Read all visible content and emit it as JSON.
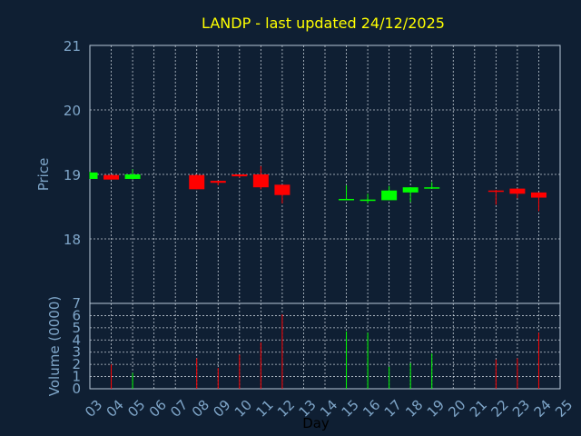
{
  "chart_data": {
    "type": "candlestick",
    "title": "LANDP - last updated 24/12/2025",
    "xlabel": "Day",
    "price_axis": {
      "label": "Price",
      "ylim": [
        17.0,
        21.0
      ],
      "ticks": [
        "18",
        "19",
        "20",
        "21"
      ]
    },
    "volume_axis": {
      "label": "Volume (0000)",
      "ylim": [
        0,
        7
      ],
      "ticks": [
        "0",
        "1",
        "2",
        "3",
        "4",
        "5",
        "6",
        "7"
      ]
    },
    "x_ticks": [
      "03",
      "04",
      "05",
      "06",
      "07",
      "08",
      "09",
      "10",
      "11",
      "12",
      "13",
      "14",
      "15",
      "16",
      "17",
      "18",
      "19",
      "20",
      "21",
      "22",
      "23",
      "24",
      "25"
    ],
    "grid": true,
    "colors": {
      "up": "#00ff00",
      "down": "#ff0000",
      "background": "#0f1f33",
      "title": "#ffff00",
      "axis_text": "#7fa6c9"
    },
    "candles": [
      {
        "day": "03",
        "open": 18.93,
        "high": 19.04,
        "low": 18.93,
        "close": 19.03,
        "volume": 0
      },
      {
        "day": "04",
        "open": 18.99,
        "high": 19.0,
        "low": 18.92,
        "close": 18.92,
        "volume": 2.0
      },
      {
        "day": "05",
        "open": 18.93,
        "high": 19.08,
        "low": 18.92,
        "close": 19.0,
        "volume": 1.3
      },
      {
        "day": "08",
        "open": 18.99,
        "high": 19.0,
        "low": 18.77,
        "close": 18.77,
        "volume": 2.5
      },
      {
        "day": "09",
        "open": 18.9,
        "high": 18.9,
        "low": 18.83,
        "close": 18.87,
        "volume": 1.7
      },
      {
        "day": "10",
        "open": 19.0,
        "high": 19.0,
        "low": 18.95,
        "close": 18.97,
        "volume": 2.8
      },
      {
        "day": "11",
        "open": 19.0,
        "high": 19.13,
        "low": 18.77,
        "close": 18.8,
        "volume": 3.8
      },
      {
        "day": "12",
        "open": 18.84,
        "high": 18.84,
        "low": 18.55,
        "close": 18.68,
        "volume": 6.1
      },
      {
        "day": "15",
        "open": 18.6,
        "high": 18.83,
        "low": 18.6,
        "close": 18.62,
        "volume": 4.7
      },
      {
        "day": "16",
        "open": 18.6,
        "high": 18.7,
        "low": 18.55,
        "close": 18.61,
        "volume": 4.6
      },
      {
        "day": "17",
        "open": 18.6,
        "high": 18.82,
        "low": 18.6,
        "close": 18.75,
        "volume": 1.8
      },
      {
        "day": "18",
        "open": 18.72,
        "high": 18.8,
        "low": 18.57,
        "close": 18.8,
        "volume": 2.1
      },
      {
        "day": "19",
        "open": 18.79,
        "high": 18.88,
        "low": 18.78,
        "close": 18.8,
        "volume": 2.9
      },
      {
        "day": "22",
        "open": 18.75,
        "high": 18.76,
        "low": 18.53,
        "close": 18.73,
        "volume": 2.4
      },
      {
        "day": "23",
        "open": 18.78,
        "high": 18.78,
        "low": 18.63,
        "close": 18.7,
        "volume": 2.5
      },
      {
        "day": "24",
        "open": 18.72,
        "high": 18.72,
        "low": 18.43,
        "close": 18.64,
        "volume": 4.6
      }
    ]
  }
}
